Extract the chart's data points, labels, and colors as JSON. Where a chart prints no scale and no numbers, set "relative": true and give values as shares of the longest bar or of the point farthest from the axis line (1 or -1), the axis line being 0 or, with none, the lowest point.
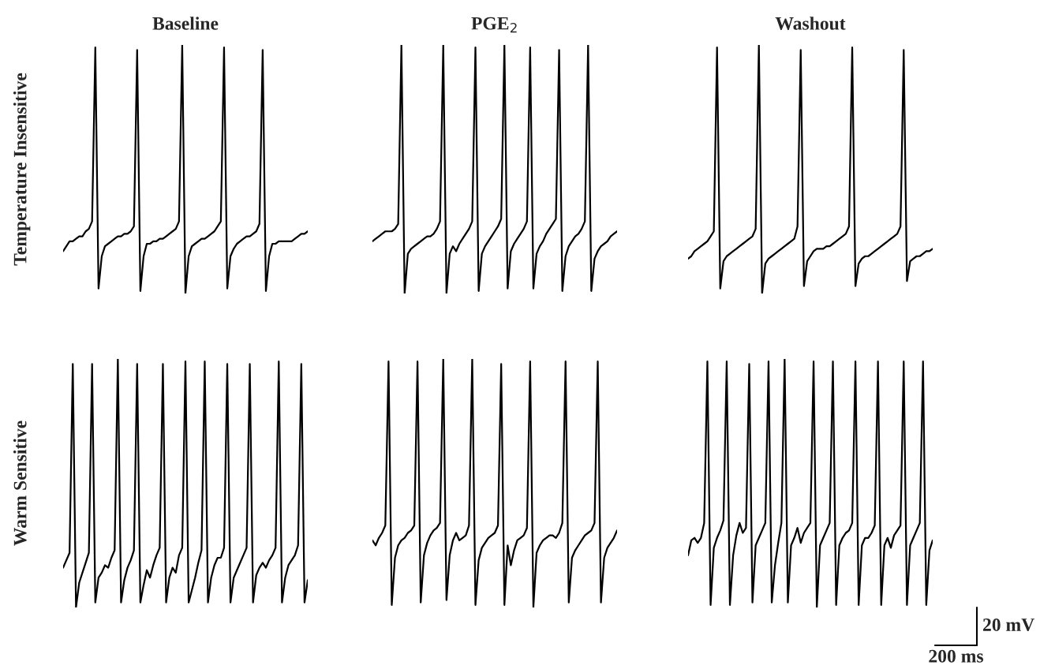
{
  "chart_data": [
    {
      "type": "line",
      "title": "Baseline",
      "ylabel": "Temperature Insensitive",
      "relative": true,
      "categories": [
        null,
        null,
        null,
        null,
        null,
        null,
        null,
        null,
        null,
        null,
        null,
        null,
        null,
        null,
        null,
        null,
        null,
        null,
        null,
        null,
        null,
        null,
        null,
        null,
        null,
        null,
        null,
        null,
        null,
        null,
        null,
        null,
        null,
        null,
        null,
        null,
        null,
        null,
        null,
        null,
        null,
        null,
        null,
        null,
        null,
        null,
        null,
        null,
        null,
        null,
        null,
        null,
        null,
        null,
        null,
        null,
        null,
        null,
        null,
        null,
        null,
        null,
        null,
        null,
        null,
        null,
        null,
        null,
        null,
        null,
        null,
        null,
        null,
        null,
        null,
        null,
        null
      ],
      "series": [
        {
          "color": "#000000",
          "values": [
            0.17,
            0.19,
            0.21,
            0.21,
            0.22,
            0.23,
            0.23,
            0.25,
            0.26,
            0.29,
            0.99,
            0.02,
            0.15,
            0.19,
            0.2,
            0.21,
            0.22,
            0.23,
            0.23,
            0.24,
            0.24,
            0.25,
            0.27,
            0.98,
            0.01,
            0.15,
            0.2,
            0.2,
            0.21,
            0.21,
            0.22,
            0.22,
            0.23,
            0.24,
            0.25,
            0.26,
            0.29,
            1,
            0,
            0.15,
            0.19,
            0.2,
            0.21,
            0.22,
            0.22,
            0.23,
            0.24,
            0.25,
            0.27,
            0.29,
            0.99,
            0.02,
            0.15,
            0.18,
            0.2,
            0.21,
            0.22,
            0.23,
            0.23,
            0.24,
            0.25,
            0.28,
            0.98,
            0.01,
            0.15,
            0.2,
            0.2,
            0.21,
            0.21,
            0.21,
            0.21,
            0.21,
            0.22,
            0.23,
            0.24,
            0.24,
            0.25
          ]
        }
      ]
    },
    {
      "type": "line",
      "title": "PGE$_{2}$",
      "relative": true,
      "categories": [
        null,
        null,
        null,
        null,
        null,
        null,
        null,
        null,
        null,
        null,
        null,
        null,
        null,
        null,
        null,
        null,
        null,
        null,
        null,
        null,
        null,
        null,
        null,
        null,
        null,
        null,
        null,
        null,
        null,
        null,
        null,
        null,
        null,
        null,
        null,
        null,
        null,
        null,
        null,
        null,
        null,
        null,
        null,
        null,
        null,
        null,
        null,
        null,
        null,
        null,
        null,
        null,
        null,
        null,
        null,
        null,
        null,
        null,
        null,
        null,
        null,
        null,
        null,
        null,
        null,
        null,
        null,
        null,
        null,
        null,
        null,
        null,
        null,
        null,
        null,
        null,
        null
      ],
      "series": [
        {
          "color": "#000000",
          "values": [
            0.21,
            0.22,
            0.23,
            0.24,
            0.25,
            0.25,
            0.25,
            0.26,
            0.28,
            1,
            0,
            0.16,
            0.18,
            0.19,
            0.2,
            0.21,
            0.22,
            0.23,
            0.23,
            0.24,
            0.26,
            0.29,
            1,
            0,
            0.16,
            0.19,
            0.17,
            0.2,
            0.22,
            0.24,
            0.26,
            0.29,
            0.99,
            0.01,
            0.16,
            0.19,
            0.21,
            0.23,
            0.25,
            0.27,
            0.3,
            1,
            0.02,
            0.17,
            0.2,
            0.22,
            0.24,
            0.26,
            0.29,
            0.99,
            0.02,
            0.16,
            0.19,
            0.21,
            0.24,
            0.26,
            0.28,
            0.3,
            0.98,
            0.01,
            0.15,
            0.19,
            0.21,
            0.23,
            0.24,
            0.26,
            0.29,
            1,
            0.01,
            0.14,
            0.17,
            0.19,
            0.2,
            0.21,
            0.23,
            0.24,
            0.25
          ]
        }
      ]
    },
    {
      "type": "line",
      "title": "Washout",
      "relative": true,
      "categories": [
        null,
        null,
        null,
        null,
        null,
        null,
        null,
        null,
        null,
        null,
        null,
        null,
        null,
        null,
        null,
        null,
        null,
        null,
        null,
        null,
        null,
        null,
        null,
        null,
        null,
        null,
        null,
        null,
        null,
        null,
        null,
        null,
        null,
        null,
        null,
        null,
        null,
        null,
        null,
        null,
        null,
        null,
        null,
        null,
        null,
        null,
        null,
        null,
        null,
        null,
        null,
        null,
        null,
        null,
        null,
        null,
        null,
        null,
        null,
        null,
        null,
        null,
        null,
        null,
        null,
        null,
        null,
        null,
        null,
        null,
        null,
        null,
        null,
        null,
        null,
        null,
        null
      ],
      "series": [
        {
          "color": "#000000",
          "values": [
            0.14,
            0.15,
            0.17,
            0.18,
            0.19,
            0.2,
            0.21,
            0.23,
            0.25,
            0.99,
            0.02,
            0.13,
            0.15,
            0.16,
            0.17,
            0.18,
            0.19,
            0.2,
            0.21,
            0.22,
            0.23,
            0.26,
            1,
            0,
            0.12,
            0.14,
            0.15,
            0.16,
            0.17,
            0.18,
            0.19,
            0.2,
            0.21,
            0.22,
            0.27,
            0.98,
            0.03,
            0.13,
            0.15,
            0.17,
            0.18,
            0.18,
            0.18,
            0.19,
            0.19,
            0.2,
            0.21,
            0.22,
            0.23,
            0.24,
            0.27,
            0.99,
            0.03,
            0.12,
            0.14,
            0.15,
            0.15,
            0.16,
            0.17,
            0.18,
            0.19,
            0.2,
            0.21,
            0.22,
            0.23,
            0.24,
            0.27,
            0.98,
            0.05,
            0.13,
            0.14,
            0.15,
            0.15,
            0.16,
            0.17,
            0.17,
            0.18
          ]
        }
      ]
    },
    {
      "type": "line",
      "ylabel": "Warm Sensitive",
      "relative": true,
      "categories": [
        null,
        null,
        null,
        null,
        null,
        null,
        null,
        null,
        null,
        null,
        null,
        null,
        null,
        null,
        null,
        null,
        null,
        null,
        null,
        null,
        null,
        null,
        null,
        null,
        null,
        null,
        null,
        null,
        null,
        null,
        null,
        null,
        null,
        null,
        null,
        null,
        null,
        null,
        null,
        null,
        null,
        null,
        null,
        null,
        null,
        null,
        null,
        null,
        null,
        null,
        null,
        null,
        null,
        null,
        null,
        null,
        null,
        null,
        null,
        null,
        null,
        null,
        null,
        null,
        null,
        null,
        null,
        null,
        null,
        null,
        null,
        null,
        null,
        null,
        null,
        null,
        null
      ],
      "series": [
        {
          "color": "#000000",
          "values": [
            0.16,
            0.19,
            0.22,
            0.98,
            0,
            0.1,
            0.14,
            0.18,
            0.22,
            0.98,
            0.02,
            0.12,
            0.14,
            0.17,
            0.16,
            0.2,
            0.23,
            1,
            0.02,
            0.11,
            0.16,
            0.19,
            0.23,
            0.98,
            0.02,
            0.09,
            0.15,
            0.12,
            0.17,
            0.21,
            0.24,
            0.98,
            0.02,
            0.12,
            0.16,
            0.14,
            0.21,
            0.24,
            0.99,
            0.02,
            0.07,
            0.12,
            0.18,
            0.23,
            0.99,
            0.02,
            0.12,
            0.17,
            0.2,
            0.2,
            0.24,
            0.98,
            0.02,
            0.12,
            0.15,
            0.18,
            0.21,
            0.24,
            0.98,
            0.02,
            0.13,
            0.16,
            0.18,
            0.16,
            0.19,
            0.21,
            0.24,
            0.99,
            0.02,
            0.12,
            0.17,
            0.19,
            0.21,
            0.25,
            0.98,
            0.02,
            0.11
          ]
        }
      ]
    },
    {
      "type": "line",
      "relative": true,
      "categories": [
        null,
        null,
        null,
        null,
        null,
        null,
        null,
        null,
        null,
        null,
        null,
        null,
        null,
        null,
        null,
        null,
        null,
        null,
        null,
        null,
        null,
        null,
        null,
        null,
        null,
        null,
        null,
        null,
        null,
        null,
        null,
        null,
        null,
        null,
        null,
        null,
        null,
        null,
        null,
        null,
        null,
        null,
        null,
        null,
        null,
        null,
        null,
        null,
        null,
        null,
        null,
        null,
        null,
        null,
        null,
        null,
        null,
        null,
        null,
        null,
        null,
        null,
        null,
        null,
        null,
        null,
        null,
        null,
        null,
        null,
        null,
        null,
        null,
        null,
        null,
        null,
        null
      ],
      "series": [
        {
          "color": "#000000",
          "values": [
            0.27,
            0.25,
            0.28,
            0.3,
            0.33,
            0.99,
            0.01,
            0.2,
            0.25,
            0.27,
            0.28,
            0.3,
            0.31,
            0.33,
            0.99,
            0.02,
            0.21,
            0.26,
            0.29,
            0.31,
            0.32,
            0.34,
            1,
            0.03,
            0.21,
            0.27,
            0.3,
            0.27,
            0.28,
            0.29,
            0.33,
            1,
            0.01,
            0.19,
            0.24,
            0.26,
            0.28,
            0.29,
            0.3,
            0.33,
            0.98,
            0.01,
            0.25,
            0.17,
            0.23,
            0.27,
            0.28,
            0.29,
            0.32,
            0.99,
            0,
            0.22,
            0.25,
            0.27,
            0.28,
            0.29,
            0.29,
            0.28,
            0.3,
            0.34,
            0.99,
            0.02,
            0.2,
            0.23,
            0.25,
            0.27,
            0.29,
            0.3,
            0.31,
            0.34,
            0.99,
            0.02,
            0.2,
            0.24,
            0.26,
            0.28,
            0.31
          ]
        }
      ]
    },
    {
      "type": "line",
      "relative": true,
      "annotations": [
        "20 mV",
        "200 ms"
      ],
      "categories": [
        null,
        null,
        null,
        null,
        null,
        null,
        null,
        null,
        null,
        null,
        null,
        null,
        null,
        null,
        null,
        null,
        null,
        null,
        null,
        null,
        null,
        null,
        null,
        null,
        null,
        null,
        null,
        null,
        null,
        null,
        null,
        null,
        null,
        null,
        null,
        null,
        null,
        null,
        null,
        null,
        null,
        null,
        null,
        null,
        null,
        null,
        null,
        null,
        null,
        null,
        null,
        null,
        null,
        null,
        null,
        null,
        null,
        null,
        null,
        null,
        null,
        null,
        null,
        null,
        null,
        null,
        null,
        null,
        null,
        null,
        null,
        null,
        null,
        null,
        null,
        null,
        null
      ],
      "series": [
        {
          "color": "#000000",
          "values": [
            0.21,
            0.27,
            0.28,
            0.26,
            0.28,
            0.34,
            0.99,
            0.01,
            0.24,
            0.28,
            0.31,
            0.35,
            0.99,
            0.01,
            0.21,
            0.29,
            0.34,
            0.3,
            0.32,
            0.98,
            0.02,
            0.25,
            0.28,
            0.31,
            0.34,
            0.99,
            0.02,
            0.17,
            0.26,
            0.34,
            1,
            0.02,
            0.25,
            0.28,
            0.32,
            0.26,
            0.3,
            0.32,
            0.34,
            0.99,
            0,
            0.25,
            0.28,
            0.31,
            0.34,
            0.99,
            0.01,
            0.25,
            0.28,
            0.3,
            0.31,
            0.34,
            0.99,
            0.01,
            0.25,
            0.28,
            0.28,
            0.3,
            0.33,
            0.99,
            0.01,
            0.25,
            0.28,
            0.24,
            0.29,
            0.31,
            0.33,
            0.99,
            0.01,
            0.25,
            0.28,
            0.31,
            0.34,
            0.99,
            0.01,
            0.23,
            0.27
          ]
        }
      ]
    }
  ]
}
